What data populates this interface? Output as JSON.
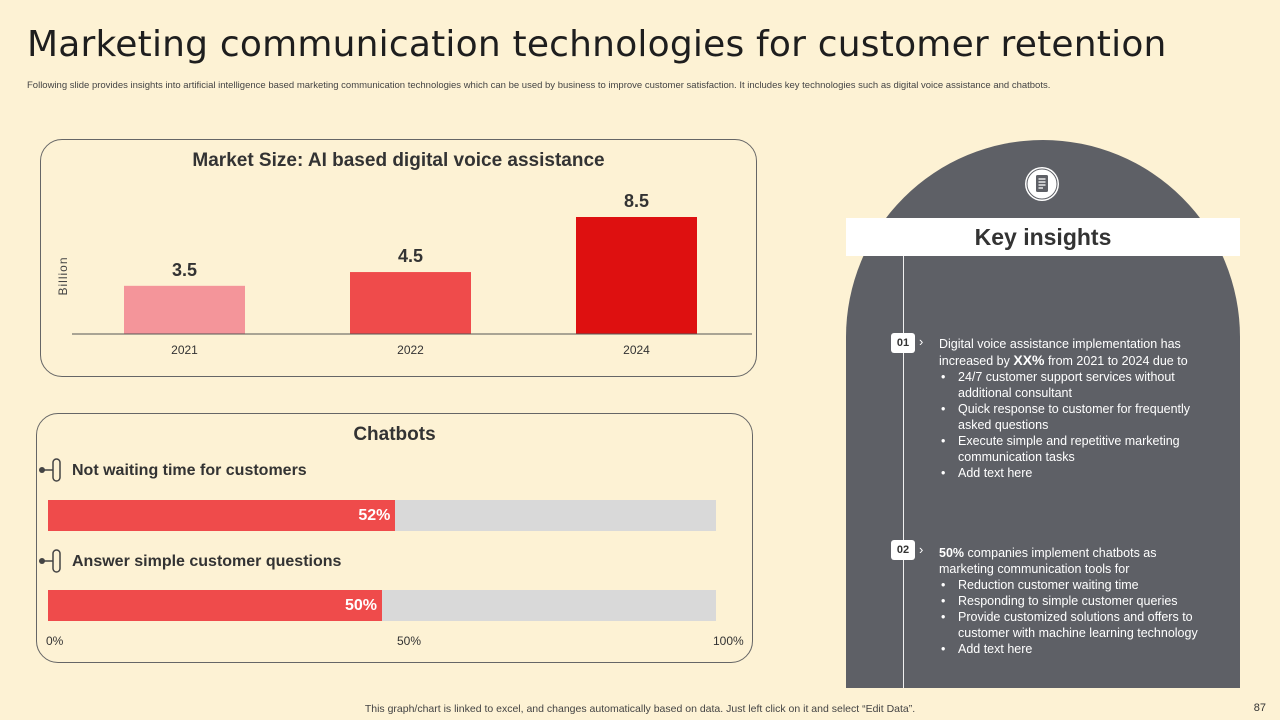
{
  "page": {
    "title": "Marketing communication technologies for customer retention",
    "subtitle": "Following slide provides insights into artificial intelligence based marketing communication technologies which can be used by business to improve customer satisfaction. It includes key technologies such as digital voice assistance and chatbots.",
    "footer": "This graph/chart is linked to excel,  and changes automatically based on data. Just left click on it and select “Edit Data”.",
    "page_number": "87"
  },
  "chart_data": [
    {
      "type": "bar",
      "title": "Market Size: AI based digital voice assistance",
      "ylabel": "Billion",
      "xlabel": "",
      "categories": [
        "2021",
        "2022",
        "2024"
      ],
      "values": [
        3.5,
        4.5,
        8.5
      ],
      "value_labels": [
        "3.5",
        "4.5",
        "8.5"
      ],
      "colors": [
        "#F4959A",
        "#EF4B4B",
        "#DE1010"
      ],
      "ylim": [
        0,
        10
      ],
      "grid": false
    },
    {
      "type": "bar",
      "orientation": "horizontal",
      "title": "Chatbots",
      "categories": [
        "Not waiting time for customers",
        "Answer simple customer questions"
      ],
      "values": [
        52,
        50
      ],
      "value_labels": [
        "52%",
        "50%"
      ],
      "xlim": [
        0,
        100
      ],
      "x_ticks": [
        "0%",
        "50%",
        "100%"
      ],
      "fill_color": "#EF4B4B",
      "track_color": "#D9D9D9"
    }
  ],
  "insights": {
    "title": "Key insights",
    "items": [
      {
        "number": "01",
        "intro_before": "Digital voice assistance implementation has increased by ",
        "intro_bold": "XX%",
        "intro_after": " from 2021 to 2024 due to",
        "bullets": [
          "24/7 customer support services without additional consultant",
          "Quick response to customer for frequently asked questions",
          "Execute simple and repetitive  marketing communication tasks",
          "Add text here"
        ]
      },
      {
        "number": "02",
        "intro_bold": "50%",
        "intro_after": " companies implement chatbots as marketing communication tools for",
        "bullets": [
          "Reduction customer waiting time",
          "Responding to simple customer queries",
          "Provide  customized solutions and offers to customer with machine learning technology",
          "Add text here"
        ]
      }
    ]
  },
  "colors": {
    "background": "#FDF2D4",
    "panel_dark": "#5E6066"
  }
}
